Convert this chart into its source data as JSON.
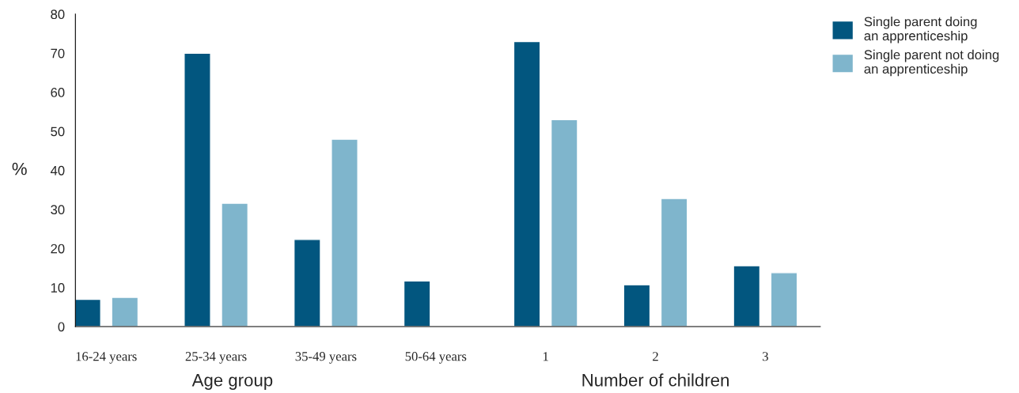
{
  "chart_data": {
    "type": "bar",
    "ylabel": "%",
    "categories": [
      "16-24 years",
      "25-34 years",
      "35-49 years",
      "50-64 years",
      "1",
      "2",
      "3"
    ],
    "series": [
      {
        "name": "Single parent doing\nan apprenticeship",
        "color": "#02567f",
        "values": [
          7,
          70,
          22.3,
          11.7,
          73,
          10.7,
          15.6
        ]
      },
      {
        "name": "Single parent not doing\nan apprenticeship",
        "color": "#7fb5cc",
        "values": [
          7.5,
          31.6,
          48,
          null,
          53,
          32.8,
          13.8
        ]
      }
    ],
    "annotations": [
      "Age group",
      "Number of children"
    ],
    "ylim": [
      0,
      80
    ],
    "yticks": [
      0,
      10,
      20,
      30,
      40,
      50,
      60,
      70,
      80
    ],
    "grid": false,
    "legend": "top right"
  }
}
